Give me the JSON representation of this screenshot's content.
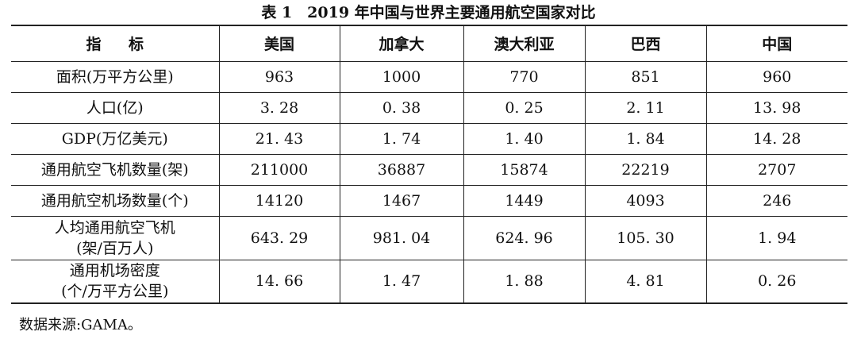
{
  "caption": "表 1　2019 年中国与世界主要通用航空国家对比",
  "table": {
    "headers": [
      "指 标",
      "美国",
      "加拿大",
      "澳大利亚",
      "巴西",
      "中国"
    ],
    "rows": [
      {
        "label": [
          "面积(万平方公里)"
        ],
        "values": [
          "963",
          "1000",
          "770",
          "851",
          "960"
        ]
      },
      {
        "label": [
          "人口(亿)"
        ],
        "values": [
          "3. 28",
          "0. 38",
          "0. 25",
          "2. 11",
          "13. 98"
        ]
      },
      {
        "label": [
          "GDP(万亿美元)"
        ],
        "values": [
          "21. 43",
          "1. 74",
          "1. 40",
          "1. 84",
          "14. 28"
        ]
      },
      {
        "label": [
          "通用航空飞机数量(架)"
        ],
        "values": [
          "211000",
          "36887",
          "15874",
          "22219",
          "2707"
        ]
      },
      {
        "label": [
          "通用航空机场数量(个)"
        ],
        "values": [
          "14120",
          "1467",
          "1449",
          "4093",
          "246"
        ]
      },
      {
        "label": [
          "人均通用航空飞机",
          "(架/百万人)"
        ],
        "values": [
          "643. 29",
          "981. 04",
          "624. 96",
          "105. 30",
          "1. 94"
        ]
      },
      {
        "label": [
          "通用机场密度",
          "(个/万平方公里)"
        ],
        "values": [
          "14. 66",
          "1. 47",
          "1. 88",
          "4. 81",
          "0. 26"
        ]
      }
    ]
  },
  "source": "数据来源:GAMA。"
}
